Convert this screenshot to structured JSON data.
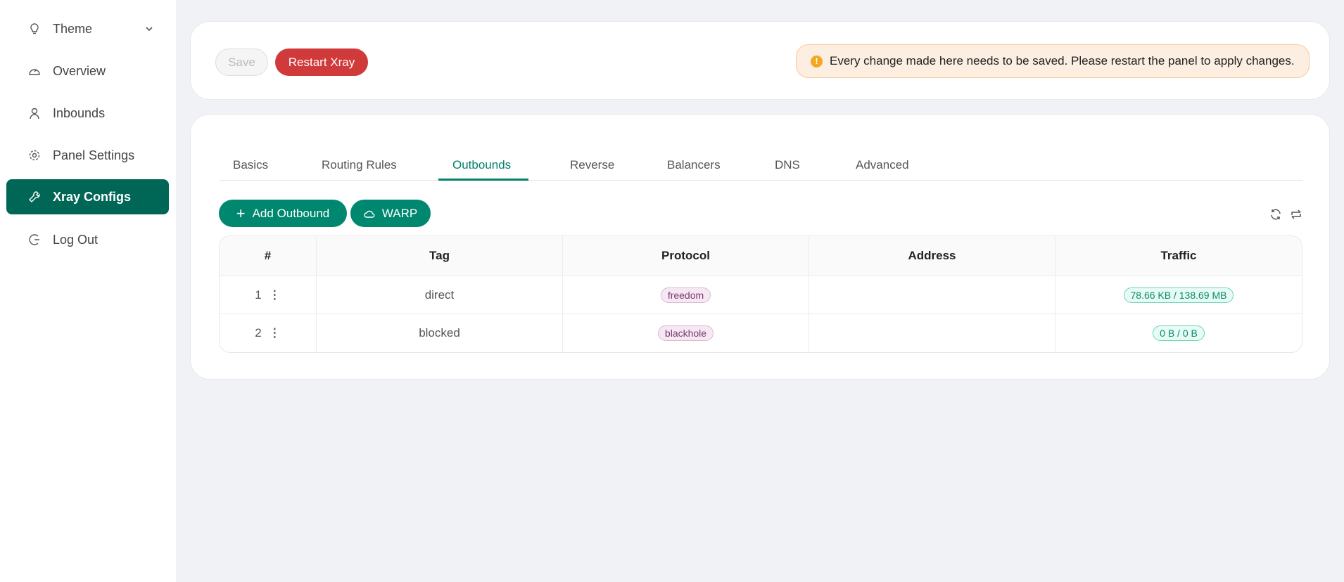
{
  "sidebar": {
    "items": [
      {
        "label": "Theme",
        "icon": "bulb-icon"
      },
      {
        "label": "Overview",
        "icon": "dashboard-icon"
      },
      {
        "label": "Inbounds",
        "icon": "user-icon"
      },
      {
        "label": "Panel Settings",
        "icon": "gear-icon"
      },
      {
        "label": "Xray Configs",
        "icon": "wrench-icon",
        "active": true
      },
      {
        "label": "Log Out",
        "icon": "logout-icon"
      }
    ]
  },
  "toolbar": {
    "save_label": "Save",
    "restart_label": "Restart Xray",
    "alert": "Every change made here needs to be saved. Please restart the panel to apply changes."
  },
  "tabs": [
    "Basics",
    "Routing Rules",
    "Outbounds",
    "Reverse",
    "Balancers",
    "DNS",
    "Advanced"
  ],
  "active_tab": "Outbounds",
  "actions": {
    "add_outbound": "Add Outbound",
    "warp": "WARP"
  },
  "table": {
    "headers": [
      "#",
      "Tag",
      "Protocol",
      "Address",
      "Traffic"
    ],
    "rows": [
      {
        "index": "1",
        "tag": "direct",
        "protocol": "freedom",
        "address": "",
        "traffic": "78.66 KB / 138.69 MB"
      },
      {
        "index": "2",
        "tag": "blocked",
        "protocol": "blackhole",
        "address": "",
        "traffic": "0 B / 0 B"
      }
    ]
  },
  "colors": {
    "accent": "#00806a",
    "active_nav": "#006655",
    "restart": "#d13a3a",
    "alert_bg": "#fdeee2"
  }
}
